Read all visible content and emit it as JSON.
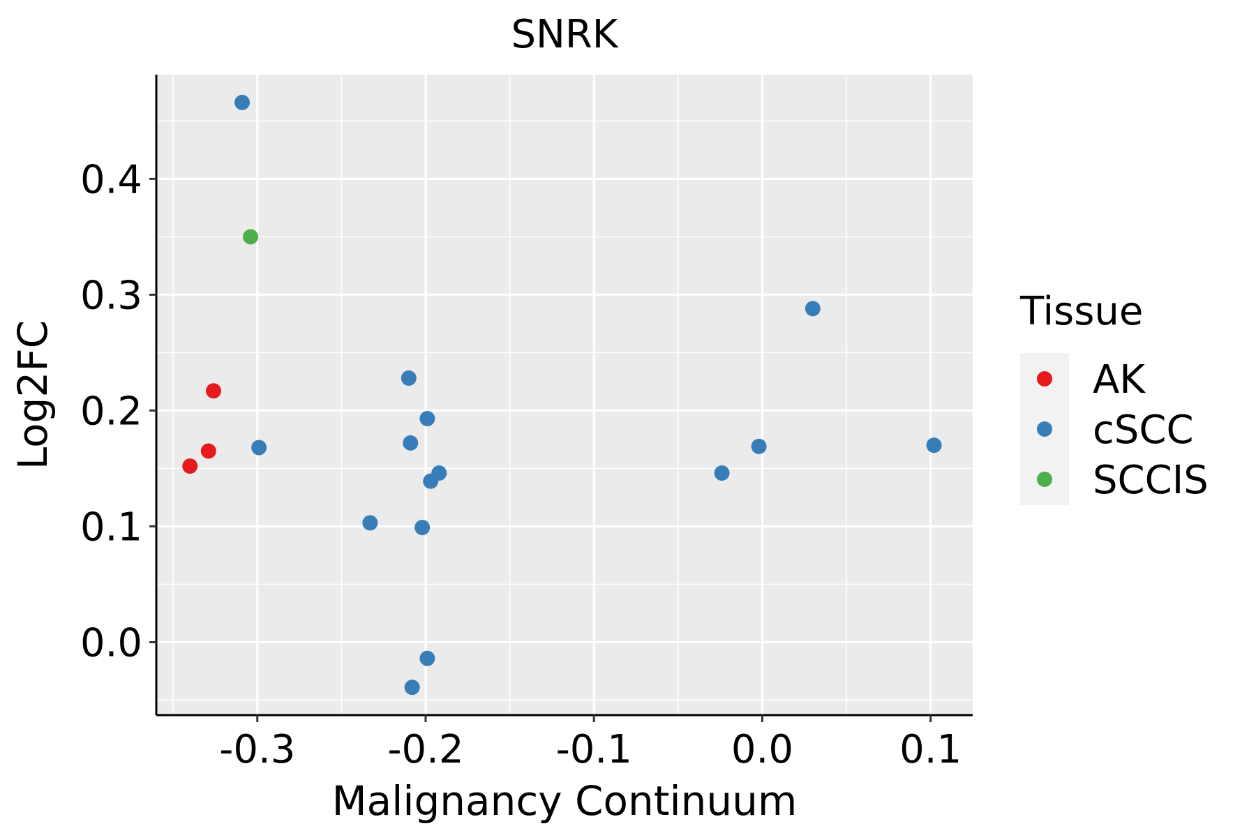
{
  "chart_data": {
    "type": "scatter",
    "title": "SNRK",
    "xlabel": "Malignancy Continuum",
    "ylabel": "Log2FC",
    "xlim": [
      -0.36,
      0.125
    ],
    "ylim": [
      -0.063,
      0.49
    ],
    "x_major_ticks": [
      -0.3,
      -0.2,
      -0.1,
      0.0,
      0.1
    ],
    "x_tick_labels": [
      "-0.3",
      "-0.2",
      "-0.1",
      "0.0",
      "0.1"
    ],
    "x_minor_ticks": [
      -0.35,
      -0.25,
      -0.15,
      -0.05,
      0.05
    ],
    "y_major_ticks": [
      0.0,
      0.1,
      0.2,
      0.3,
      0.4
    ],
    "y_tick_labels": [
      "0.0",
      "0.1",
      "0.2",
      "0.3",
      "0.4"
    ],
    "y_minor_ticks": [
      -0.05,
      0.05,
      0.15,
      0.25,
      0.35,
      0.45
    ],
    "grid": true,
    "legend": {
      "title": "Tissue",
      "placement": "right"
    },
    "series": [
      {
        "name": "AK",
        "color": "#E41A1C",
        "points": [
          {
            "x": -0.34,
            "y": 0.152
          },
          {
            "x": -0.329,
            "y": 0.165
          },
          {
            "x": -0.326,
            "y": 0.217
          }
        ]
      },
      {
        "name": "cSCC",
        "color": "#377EB8",
        "points": [
          {
            "x": -0.309,
            "y": 0.466
          },
          {
            "x": -0.299,
            "y": 0.168
          },
          {
            "x": -0.233,
            "y": 0.103
          },
          {
            "x": -0.21,
            "y": 0.228
          },
          {
            "x": -0.209,
            "y": 0.172
          },
          {
            "x": -0.208,
            "y": -0.039
          },
          {
            "x": -0.202,
            "y": 0.099
          },
          {
            "x": -0.199,
            "y": 0.193
          },
          {
            "x": -0.199,
            "y": -0.014
          },
          {
            "x": -0.197,
            "y": 0.139
          },
          {
            "x": -0.192,
            "y": 0.146
          },
          {
            "x": -0.024,
            "y": 0.146
          },
          {
            "x": -0.002,
            "y": 0.169
          },
          {
            "x": 0.03,
            "y": 0.288
          },
          {
            "x": 0.102,
            "y": 0.17
          }
        ]
      },
      {
        "name": "SCCIS",
        "color": "#4DAF4A",
        "points": [
          {
            "x": -0.304,
            "y": 0.35
          }
        ]
      }
    ]
  }
}
